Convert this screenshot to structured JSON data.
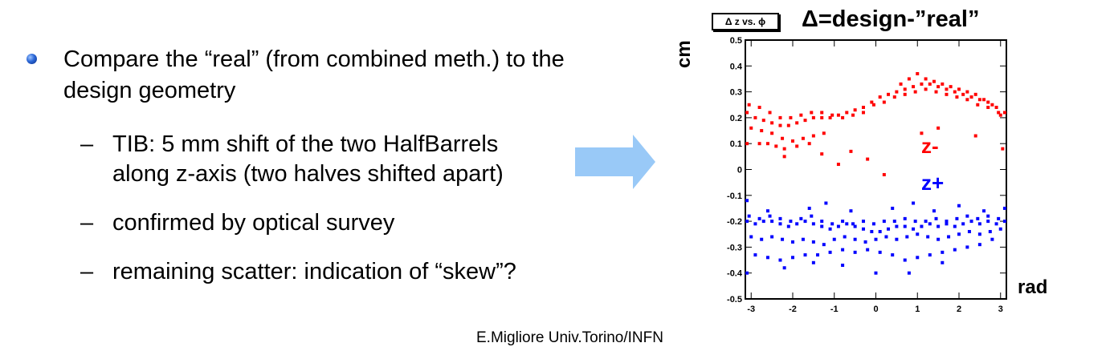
{
  "slide": {
    "bullet": "Compare the “real” (from combined meth.) to the design geometry",
    "sub_bullets": [
      "TIB: 5 mm shift of the two HalfBarrels",
      "along z-axis (two halves shifted apart)",
      "confirmed by optical survey",
      "remaining scatter: indication of “skew”?"
    ],
    "dash": "–",
    "footer": "E.Migliore Univ.Torino/INFN"
  },
  "chart_data": {
    "type": "scatter",
    "title": "Δ=design-”real”",
    "histogram_label": "Δ z vs. ϕ",
    "xlabel": "rad",
    "ylabel": "cm",
    "xlim": [
      -3.14,
      3.14
    ],
    "ylim": [
      -0.5,
      0.5
    ],
    "x_ticks": [
      "-3",
      "-2",
      "-1",
      "0",
      "1",
      "2",
      "3"
    ],
    "y_ticks": [
      "0.5",
      "0.4",
      "0.3",
      "0.2",
      "0.1",
      "0",
      "-0.1",
      "-0.2",
      "-0.3",
      "-0.4",
      "-0.5"
    ],
    "series": [
      {
        "name": "z-",
        "color": "#ff0000",
        "points": [
          [
            -3.1,
            0.22
          ],
          [
            -2.9,
            0.2
          ],
          [
            -2.7,
            0.19
          ],
          [
            -2.5,
            0.18
          ],
          [
            -2.3,
            0.17
          ],
          [
            -2.1,
            0.17
          ],
          [
            -1.9,
            0.18
          ],
          [
            -1.7,
            0.19
          ],
          [
            -1.5,
            0.2
          ],
          [
            -1.3,
            0.2
          ],
          [
            -1.1,
            0.2
          ],
          [
            -0.9,
            0.21
          ],
          [
            -0.7,
            0.22
          ],
          [
            -0.5,
            0.23
          ],
          [
            -0.3,
            0.24
          ],
          [
            -0.1,
            0.26
          ],
          [
            0.1,
            0.28
          ],
          [
            0.3,
            0.29
          ],
          [
            0.5,
            0.3
          ],
          [
            0.7,
            0.31
          ],
          [
            0.9,
            0.32
          ],
          [
            1.1,
            0.33
          ],
          [
            1.3,
            0.33
          ],
          [
            1.5,
            0.32
          ],
          [
            1.7,
            0.31
          ],
          [
            1.9,
            0.3
          ],
          [
            2.1,
            0.29
          ],
          [
            2.3,
            0.28
          ],
          [
            2.5,
            0.27
          ],
          [
            2.7,
            0.26
          ],
          [
            2.9,
            0.24
          ],
          [
            3.1,
            0.22
          ],
          [
            -3.05,
            0.25
          ],
          [
            -2.8,
            0.24
          ],
          [
            -2.55,
            0.22
          ],
          [
            -2.3,
            0.2
          ],
          [
            -2.05,
            0.2
          ],
          [
            -1.8,
            0.21
          ],
          [
            -1.55,
            0.22
          ],
          [
            -1.3,
            0.22
          ],
          [
            -1.05,
            0.21
          ],
          [
            -0.8,
            0.2
          ],
          [
            -0.55,
            0.21
          ],
          [
            -0.3,
            0.22
          ],
          [
            -0.05,
            0.25
          ],
          [
            0.2,
            0.26
          ],
          [
            0.45,
            0.28
          ],
          [
            0.7,
            0.29
          ],
          [
            0.95,
            0.3
          ],
          [
            1.2,
            0.31
          ],
          [
            1.45,
            0.3
          ],
          [
            1.7,
            0.29
          ],
          [
            1.95,
            0.28
          ],
          [
            2.2,
            0.27
          ],
          [
            2.45,
            0.25
          ],
          [
            2.7,
            0.24
          ],
          [
            2.95,
            0.22
          ],
          [
            -3.0,
            0.16
          ],
          [
            -2.75,
            0.15
          ],
          [
            -2.5,
            0.14
          ],
          [
            -2.25,
            0.12
          ],
          [
            -2.0,
            0.11
          ],
          [
            -1.75,
            0.12
          ],
          [
            -1.5,
            0.13
          ],
          [
            -1.25,
            0.14
          ],
          [
            -2.6,
            0.1
          ],
          [
            -2.4,
            0.09
          ],
          [
            -2.2,
            0.08
          ],
          [
            -1.9,
            0.09
          ],
          [
            -1.6,
            0.1
          ],
          [
            -2.8,
            0.1
          ],
          [
            -3.1,
            0.1
          ],
          [
            0.6,
            0.33
          ],
          [
            0.8,
            0.35
          ],
          [
            1.0,
            0.37
          ],
          [
            1.2,
            0.35
          ],
          [
            1.4,
            0.34
          ],
          [
            1.6,
            0.33
          ],
          [
            1.8,
            0.32
          ],
          [
            2.0,
            0.31
          ],
          [
            2.2,
            0.3
          ],
          [
            2.4,
            0.29
          ],
          [
            2.6,
            0.27
          ],
          [
            2.8,
            0.25
          ],
          [
            3.0,
            0.21
          ],
          [
            -0.9,
            0.02
          ],
          [
            -0.2,
            0.04
          ],
          [
            0.2,
            -0.02
          ],
          [
            1.1,
            0.14
          ],
          [
            1.5,
            0.16
          ],
          [
            2.4,
            0.13
          ],
          [
            3.05,
            0.08
          ],
          [
            -2.2,
            0.05
          ],
          [
            -1.3,
            0.06
          ],
          [
            -0.6,
            0.07
          ]
        ]
      },
      {
        "name": "z+",
        "color": "#0000ff",
        "points": [
          [
            -3.1,
            -0.2
          ],
          [
            -2.9,
            -0.21
          ],
          [
            -2.7,
            -0.2
          ],
          [
            -2.5,
            -0.2
          ],
          [
            -2.3,
            -0.21
          ],
          [
            -2.1,
            -0.22
          ],
          [
            -1.9,
            -0.21
          ],
          [
            -1.7,
            -0.2
          ],
          [
            -1.5,
            -0.21
          ],
          [
            -1.3,
            -0.22
          ],
          [
            -1.1,
            -0.23
          ],
          [
            -0.9,
            -0.22
          ],
          [
            -0.7,
            -0.21
          ],
          [
            -0.5,
            -0.22
          ],
          [
            -0.3,
            -0.23
          ],
          [
            -0.1,
            -0.24
          ],
          [
            0.1,
            -0.24
          ],
          [
            0.3,
            -0.23
          ],
          [
            0.5,
            -0.22
          ],
          [
            0.7,
            -0.22
          ],
          [
            0.9,
            -0.23
          ],
          [
            1.1,
            -0.22
          ],
          [
            1.3,
            -0.21
          ],
          [
            1.5,
            -0.22
          ],
          [
            1.7,
            -0.21
          ],
          [
            1.9,
            -0.22
          ],
          [
            2.1,
            -0.21
          ],
          [
            2.3,
            -0.2
          ],
          [
            2.5,
            -0.21
          ],
          [
            2.7,
            -0.2
          ],
          [
            2.9,
            -0.21
          ],
          [
            3.1,
            -0.2
          ],
          [
            -3.05,
            -0.18
          ],
          [
            -2.8,
            -0.19
          ],
          [
            -2.55,
            -0.18
          ],
          [
            -2.3,
            -0.19
          ],
          [
            -2.05,
            -0.2
          ],
          [
            -1.8,
            -0.19
          ],
          [
            -1.55,
            -0.18
          ],
          [
            -1.3,
            -0.2
          ],
          [
            -1.05,
            -0.21
          ],
          [
            -0.8,
            -0.2
          ],
          [
            -0.55,
            -0.21
          ],
          [
            -0.3,
            -0.2
          ],
          [
            -0.05,
            -0.21
          ],
          [
            0.2,
            -0.2
          ],
          [
            0.45,
            -0.2
          ],
          [
            0.7,
            -0.19
          ],
          [
            0.95,
            -0.2
          ],
          [
            1.2,
            -0.2
          ],
          [
            1.45,
            -0.19
          ],
          [
            1.7,
            -0.2
          ],
          [
            1.95,
            -0.19
          ],
          [
            2.2,
            -0.18
          ],
          [
            2.45,
            -0.19
          ],
          [
            2.7,
            -0.18
          ],
          [
            2.95,
            -0.19
          ],
          [
            -3.0,
            -0.26
          ],
          [
            -2.75,
            -0.27
          ],
          [
            -2.5,
            -0.26
          ],
          [
            -2.25,
            -0.27
          ],
          [
            -2.0,
            -0.28
          ],
          [
            -1.75,
            -0.27
          ],
          [
            -1.5,
            -0.28
          ],
          [
            -1.25,
            -0.29
          ],
          [
            -1.0,
            -0.27
          ],
          [
            -0.75,
            -0.26
          ],
          [
            -0.5,
            -0.27
          ],
          [
            -0.25,
            -0.28
          ],
          [
            0.0,
            -0.27
          ],
          [
            0.25,
            -0.26
          ],
          [
            0.5,
            -0.27
          ],
          [
            0.75,
            -0.26
          ],
          [
            1.0,
            -0.25
          ],
          [
            1.25,
            -0.26
          ],
          [
            1.5,
            -0.27
          ],
          [
            1.75,
            -0.26
          ],
          [
            2.0,
            -0.25
          ],
          [
            2.25,
            -0.24
          ],
          [
            2.5,
            -0.25
          ],
          [
            2.75,
            -0.24
          ],
          [
            3.0,
            -0.23
          ],
          [
            -2.9,
            -0.33
          ],
          [
            -2.6,
            -0.34
          ],
          [
            -2.3,
            -0.35
          ],
          [
            -2.0,
            -0.34
          ],
          [
            -1.7,
            -0.33
          ],
          [
            -1.4,
            -0.33
          ],
          [
            -1.1,
            -0.32
          ],
          [
            -0.8,
            -0.31
          ],
          [
            -0.5,
            -0.32
          ],
          [
            -0.2,
            -0.31
          ],
          [
            0.1,
            -0.32
          ],
          [
            0.4,
            -0.33
          ],
          [
            0.7,
            -0.35
          ],
          [
            1.0,
            -0.34
          ],
          [
            1.3,
            -0.33
          ],
          [
            1.6,
            -0.32
          ],
          [
            1.9,
            -0.31
          ],
          [
            2.2,
            -0.3
          ],
          [
            2.5,
            -0.29
          ],
          [
            2.8,
            -0.27
          ],
          [
            -3.1,
            -0.4
          ],
          [
            -2.2,
            -0.38
          ],
          [
            -1.5,
            -0.36
          ],
          [
            -0.8,
            -0.37
          ],
          [
            0.0,
            -0.4
          ],
          [
            0.8,
            -0.4
          ],
          [
            1.6,
            -0.36
          ],
          [
            -2.6,
            -0.16
          ],
          [
            -1.6,
            -0.15
          ],
          [
            -0.6,
            -0.16
          ],
          [
            0.4,
            -0.15
          ],
          [
            1.4,
            -0.16
          ],
          [
            2.6,
            -0.16
          ],
          [
            -3.1,
            -0.12
          ],
          [
            3.1,
            -0.15
          ],
          [
            -1.2,
            -0.13
          ],
          [
            0.9,
            -0.13
          ],
          [
            2.0,
            -0.14
          ]
        ]
      }
    ]
  }
}
